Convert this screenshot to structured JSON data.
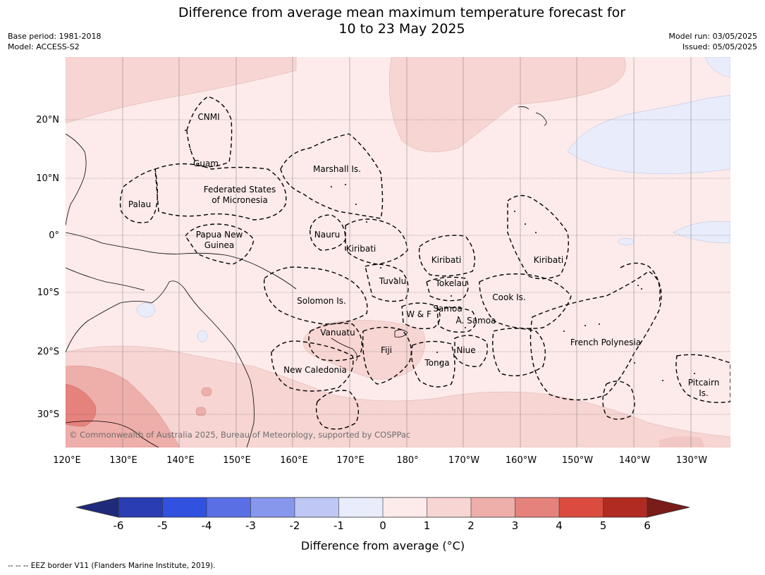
{
  "header": {
    "title_line1": "Difference from average mean maximum temperature forecast for",
    "title_line2": "10 to 23 May 2025",
    "base_period": "Base period: 1981-2018",
    "model": "Model: ACCESS-S2",
    "model_run": "Model run: 03/05/2025",
    "issued": "Issued: 05/05/2025"
  },
  "map": {
    "lon_labels": [
      "120°E",
      "130°E",
      "140°E",
      "150°E",
      "160°E",
      "170°E",
      "180°",
      "170°W",
      "160°W",
      "150°W",
      "140°W",
      "130°W"
    ],
    "lat_labels": [
      "20°N",
      "10°N",
      "0°",
      "10°S",
      "20°S",
      "30°S"
    ],
    "copyright": "© Commonwealth of Australia 2025, Bureau of Meteorology, supported by COSPPac",
    "places": [
      "CNMI",
      "Guam",
      "Marshall Is.",
      "Federated States",
      "of Micronesia",
      "Palau",
      "Papua New",
      "Guinea",
      "Nauru",
      "Kiribati",
      "Kiribati",
      "Kiribati",
      "Tuvalu",
      "Tokelau",
      "Cook Is.",
      "Solomon Is.",
      "W & F",
      "Samoa",
      "A. Samoa",
      "Vanuatu",
      "Fiji",
      "Niue",
      "Tonga",
      "French Polynesia",
      "New Caledonia",
      "Pitcairn",
      "Is."
    ],
    "colors": {
      "background": "#fcebea",
      "light_warm": "#f7d5d3",
      "warm": "#eeaeaa",
      "warmer": "#e6827c",
      "light_cool": "#e9ecfb"
    }
  },
  "colorbar": {
    "title": "Difference from average (°C)",
    "ticks": [
      "-6",
      "-5",
      "-4",
      "-3",
      "-2",
      "-1",
      "0",
      "1",
      "2",
      "3",
      "4",
      "5",
      "6"
    ],
    "colors": [
      "#1f2a7a",
      "#2a3db3",
      "#3151e0",
      "#5a6fe3",
      "#8797ec",
      "#bfc8f4",
      "#e9ecfb",
      "#fcebea",
      "#f7d5d3",
      "#eeaeaa",
      "#e6827c",
      "#db4b40",
      "#b12b23",
      "#7a1c17"
    ]
  },
  "footer": {
    "legend": "--  --  -- EEZ border V11 (Flanders Marine Institute, 2019)."
  }
}
